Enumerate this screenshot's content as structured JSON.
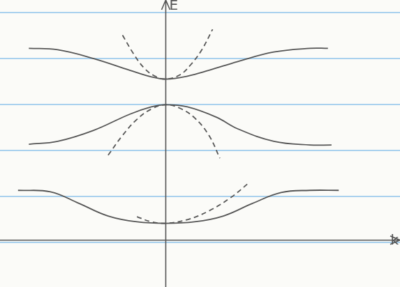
{
  "chart_data": {
    "type": "line",
    "xlabel": "k",
    "ylabel": "E",
    "xlim": [
      -2.3,
      3.25
    ],
    "ylim": [
      -0.64,
      3.28
    ],
    "grid": false,
    "tick_labels": false,
    "series": [
      {
        "color": "#555555",
        "line_style": "solid",
        "x": [
          -1.9,
          -1.5,
          -1.0,
          -0.5,
          -0.2,
          0,
          0.3,
          0.6,
          1.0,
          1.5,
          2.0,
          2.25
        ],
        "values": [
          2.62,
          2.6,
          2.48,
          2.32,
          2.23,
          2.2,
          2.24,
          2.32,
          2.44,
          2.57,
          2.62,
          2.62
        ]
      },
      {
        "color": "#555555",
        "line_style": "dashed",
        "x": [
          -0.6,
          -0.45,
          -0.3,
          -0.15,
          0,
          0.2,
          0.35,
          0.5,
          0.65
        ],
        "values": [
          2.8,
          2.55,
          2.35,
          2.24,
          2.2,
          2.26,
          2.4,
          2.6,
          2.88
        ]
      },
      {
        "color": "#555555",
        "line_style": "solid",
        "x": [
          -1.9,
          -1.5,
          -1.0,
          -0.5,
          -0.2,
          0,
          0.3,
          0.7,
          1.0,
          1.5,
          2.0,
          2.3
        ],
        "values": [
          1.31,
          1.35,
          1.5,
          1.72,
          1.82,
          1.85,
          1.82,
          1.68,
          1.52,
          1.35,
          1.3,
          1.3
        ]
      },
      {
        "color": "#555555",
        "line_style": "dashed",
        "x": [
          -0.8,
          -0.6,
          -0.4,
          -0.2,
          0,
          0.2,
          0.4,
          0.6,
          0.75
        ],
        "values": [
          1.16,
          1.43,
          1.65,
          1.79,
          1.85,
          1.8,
          1.67,
          1.43,
          1.12
        ]
      },
      {
        "color": "#555555",
        "line_style": "solid",
        "x": [
          -2.05,
          -1.6,
          -1.2,
          -0.8,
          -0.4,
          0,
          0.4,
          0.8,
          1.2,
          1.6,
          2.0,
          2.4
        ],
        "values": [
          0.68,
          0.66,
          0.5,
          0.33,
          0.25,
          0.23,
          0.25,
          0.33,
          0.5,
          0.65,
          0.68,
          0.68
        ]
      },
      {
        "color": "#555555",
        "line_style": "dashed",
        "x": [
          -0.4,
          -0.2,
          0,
          0.3,
          0.6,
          0.9,
          1.15
        ],
        "values": [
          0.32,
          0.25,
          0.23,
          0.28,
          0.4,
          0.58,
          0.78
        ]
      }
    ]
  }
}
